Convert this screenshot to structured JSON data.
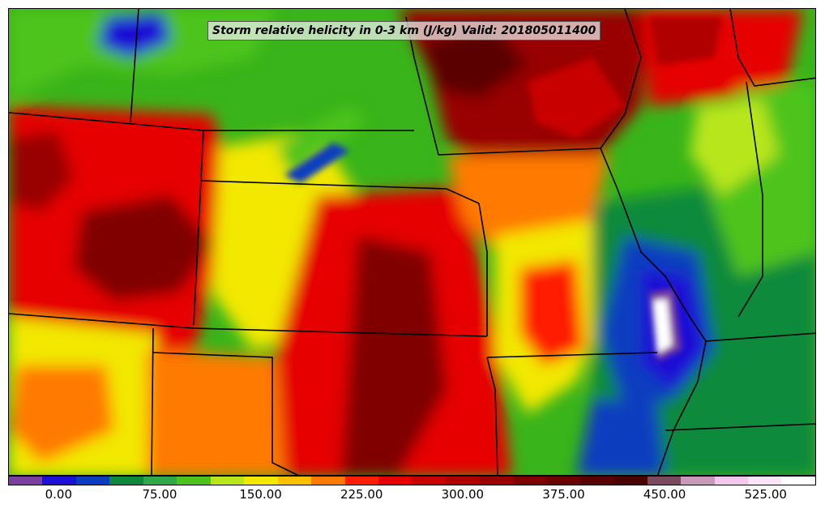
{
  "map": {
    "title": "Storm relative helicity in 0-3 km (J/kg) Valid: 201805011400",
    "field_units": "J/kg",
    "valid_time": "201805011400",
    "base_color": "#39b41a"
  },
  "colorbar": {
    "colors": [
      "#7b3fa0",
      "#1c0fd6",
      "#0a3ebf",
      "#0c8a3a",
      "#2fa84a",
      "#4dc41c",
      "#b8e61a",
      "#f2e800",
      "#ffc000",
      "#ff7a00",
      "#ff1e00",
      "#e60000",
      "#c80000",
      "#b00000",
      "#990000",
      "#800000",
      "#6b0000",
      "#5a0000",
      "#4b0000",
      "#7a4a5e",
      "#c89ab8",
      "#f2c8ec",
      "#fbe6f8",
      "#ffffff"
    ],
    "ticks": [
      "0.00",
      "75.00",
      "150.00",
      "225.00",
      "300.00",
      "375.00",
      "450.00",
      "525.00"
    ],
    "tick_values": [
      0,
      75,
      150,
      225,
      300,
      375,
      450,
      525
    ],
    "vmin": -37.5,
    "vmax": 562.5
  }
}
